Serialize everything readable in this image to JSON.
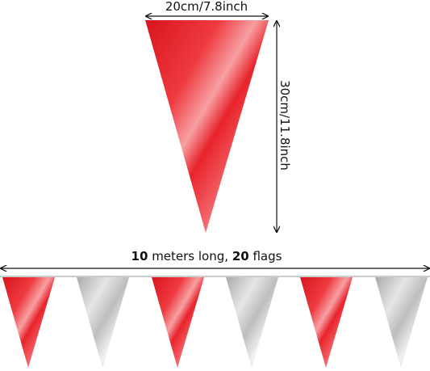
{
  "flag_size": {
    "width": "20cm/7.8inch",
    "height": "30cm/11.8inch"
  },
  "bunting": {
    "caption": [
      "10",
      " meters long, ",
      "20",
      " flags"
    ]
  }
}
